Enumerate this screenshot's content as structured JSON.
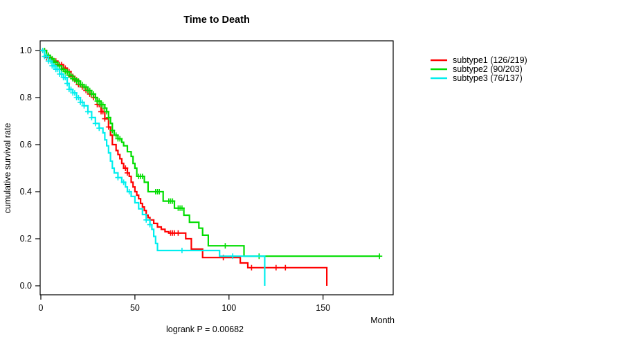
{
  "chart_data": {
    "type": "line",
    "subtype": "kaplan-meier-step",
    "title": "Time to Death",
    "xlabel": "Month",
    "ylabel": "cumulative survival rate",
    "annotation": "logrank P = 0.00682",
    "grid": false,
    "legend_position": "right-outside",
    "xlim": [
      0,
      187
    ],
    "ylim": [
      0,
      1.04
    ],
    "x_ticks": [
      {
        "value": 0,
        "label": "0"
      },
      {
        "value": 50,
        "label": "50"
      },
      {
        "value": 100,
        "label": "100"
      },
      {
        "value": 150,
        "label": "150"
      }
    ],
    "y_ticks": [
      {
        "value": 0.0,
        "label": "0.0"
      },
      {
        "value": 0.2,
        "label": "0.2"
      },
      {
        "value": 0.4,
        "label": "0.4"
      },
      {
        "value": 0.6,
        "label": "0.6"
      },
      {
        "value": 0.8,
        "label": "0.8"
      },
      {
        "value": 1.0,
        "label": "1.0"
      }
    ],
    "series": [
      {
        "name": "subtype1",
        "legend_label": "subtype1 (126/219)",
        "events": 126,
        "n": 219,
        "color": "#ff0000",
        "end_month": 152,
        "steps": [
          [
            0,
            1.0
          ],
          [
            3,
            0.97
          ],
          [
            6,
            0.955
          ],
          [
            9,
            0.94
          ],
          [
            12,
            0.925
          ],
          [
            14,
            0.91
          ],
          [
            16,
            0.89
          ],
          [
            18,
            0.875
          ],
          [
            20,
            0.855
          ],
          [
            22,
            0.845
          ],
          [
            24,
            0.83
          ],
          [
            26,
            0.815
          ],
          [
            28,
            0.8
          ],
          [
            30,
            0.77
          ],
          [
            32,
            0.74
          ],
          [
            34,
            0.71
          ],
          [
            36,
            0.675
          ],
          [
            37,
            0.64
          ],
          [
            38,
            0.6
          ],
          [
            40,
            0.575
          ],
          [
            41,
            0.558
          ],
          [
            42,
            0.54
          ],
          [
            43,
            0.52
          ],
          [
            44,
            0.5
          ],
          [
            46,
            0.48
          ],
          [
            47,
            0.465
          ],
          [
            48,
            0.44
          ],
          [
            49,
            0.42
          ],
          [
            50,
            0.4
          ],
          [
            51,
            0.385
          ],
          [
            52,
            0.37
          ],
          [
            53,
            0.35
          ],
          [
            54,
            0.335
          ],
          [
            55,
            0.32
          ],
          [
            56,
            0.3
          ],
          [
            57,
            0.29
          ],
          [
            58,
            0.28
          ],
          [
            60,
            0.265
          ],
          [
            62,
            0.25
          ],
          [
            64,
            0.24
          ],
          [
            66,
            0.23
          ],
          [
            68,
            0.224
          ],
          [
            77,
            0.2
          ],
          [
            80,
            0.156
          ],
          [
            86,
            0.12
          ],
          [
            106,
            0.097
          ],
          [
            110,
            0.077
          ],
          [
            152,
            0.0
          ]
        ],
        "censor_months": [
          2,
          3,
          4,
          5,
          6,
          7,
          8,
          9,
          10,
          11,
          12,
          13,
          14,
          15,
          16,
          17,
          18,
          19,
          20,
          21,
          22,
          23,
          24,
          25,
          26,
          27,
          28,
          29,
          30,
          31,
          32,
          33,
          34,
          36,
          45,
          46,
          69,
          70,
          71,
          73,
          97,
          112,
          125,
          130
        ]
      },
      {
        "name": "subtype2",
        "legend_label": "subtype2 (90/203)",
        "events": 90,
        "n": 203,
        "color": "#00dd00",
        "end_month": 180,
        "steps": [
          [
            0,
            1.0
          ],
          [
            3,
            0.98
          ],
          [
            5,
            0.965
          ],
          [
            7,
            0.95
          ],
          [
            9,
            0.935
          ],
          [
            11,
            0.92
          ],
          [
            13,
            0.91
          ],
          [
            15,
            0.895
          ],
          [
            17,
            0.88
          ],
          [
            19,
            0.87
          ],
          [
            21,
            0.855
          ],
          [
            23,
            0.845
          ],
          [
            25,
            0.83
          ],
          [
            27,
            0.815
          ],
          [
            29,
            0.8
          ],
          [
            30,
            0.785
          ],
          [
            32,
            0.77
          ],
          [
            34,
            0.755
          ],
          [
            35,
            0.74
          ],
          [
            36,
            0.715
          ],
          [
            37,
            0.69
          ],
          [
            38,
            0.66
          ],
          [
            39,
            0.64
          ],
          [
            41,
            0.625
          ],
          [
            43,
            0.61
          ],
          [
            44,
            0.595
          ],
          [
            46,
            0.57
          ],
          [
            48,
            0.55
          ],
          [
            49,
            0.52
          ],
          [
            50,
            0.5
          ],
          [
            51,
            0.465
          ],
          [
            55,
            0.44
          ],
          [
            57,
            0.4
          ],
          [
            65,
            0.36
          ],
          [
            71,
            0.33
          ],
          [
            76,
            0.3
          ],
          [
            79,
            0.27
          ],
          [
            84,
            0.245
          ],
          [
            86,
            0.215
          ],
          [
            89,
            0.17
          ],
          [
            108,
            0.126
          ]
        ],
        "censor_months": [
          2,
          3,
          4,
          5,
          6,
          7,
          8,
          9,
          10,
          11,
          12,
          13,
          14,
          15,
          16,
          17,
          18,
          19,
          20,
          21,
          22,
          23,
          24,
          25,
          26,
          27,
          28,
          29,
          30,
          31,
          32,
          33,
          34,
          35,
          36,
          38,
          40,
          41,
          42,
          52,
          53,
          54,
          61,
          62,
          63,
          68,
          69,
          70,
          73,
          74,
          75,
          98,
          116,
          180
        ]
      },
      {
        "name": "subtype3",
        "legend_label": "subtype3 (76/137)",
        "events": 76,
        "n": 137,
        "color": "#00eeee",
        "end_month": 119,
        "steps": [
          [
            0,
            1.0
          ],
          [
            2,
            0.975
          ],
          [
            4,
            0.955
          ],
          [
            6,
            0.935
          ],
          [
            8,
            0.92
          ],
          [
            10,
            0.9
          ],
          [
            12,
            0.885
          ],
          [
            14,
            0.86
          ],
          [
            15,
            0.835
          ],
          [
            17,
            0.82
          ],
          [
            19,
            0.8
          ],
          [
            21,
            0.78
          ],
          [
            23,
            0.765
          ],
          [
            25,
            0.74
          ],
          [
            27,
            0.715
          ],
          [
            29,
            0.69
          ],
          [
            31,
            0.67
          ],
          [
            33,
            0.65
          ],
          [
            34,
            0.62
          ],
          [
            35,
            0.595
          ],
          [
            36,
            0.565
          ],
          [
            37,
            0.53
          ],
          [
            38,
            0.5
          ],
          [
            39,
            0.48
          ],
          [
            41,
            0.46
          ],
          [
            43,
            0.44
          ],
          [
            45,
            0.42
          ],
          [
            46,
            0.4
          ],
          [
            48,
            0.38
          ],
          [
            50,
            0.353
          ],
          [
            52,
            0.327
          ],
          [
            54,
            0.303
          ],
          [
            56,
            0.28
          ],
          [
            58,
            0.26
          ],
          [
            59,
            0.24
          ],
          [
            60,
            0.21
          ],
          [
            61,
            0.18
          ],
          [
            62,
            0.15
          ],
          [
            95,
            0.126
          ],
          [
            119,
            0.0
          ]
        ],
        "censor_months": [
          1,
          2,
          3,
          4,
          5,
          6,
          7,
          8,
          9,
          10,
          11,
          12,
          13,
          14,
          15,
          16,
          17,
          18,
          19,
          20,
          21,
          22,
          23,
          25,
          27,
          29,
          31,
          41,
          44,
          47,
          56,
          58,
          75,
          102
        ]
      }
    ]
  }
}
